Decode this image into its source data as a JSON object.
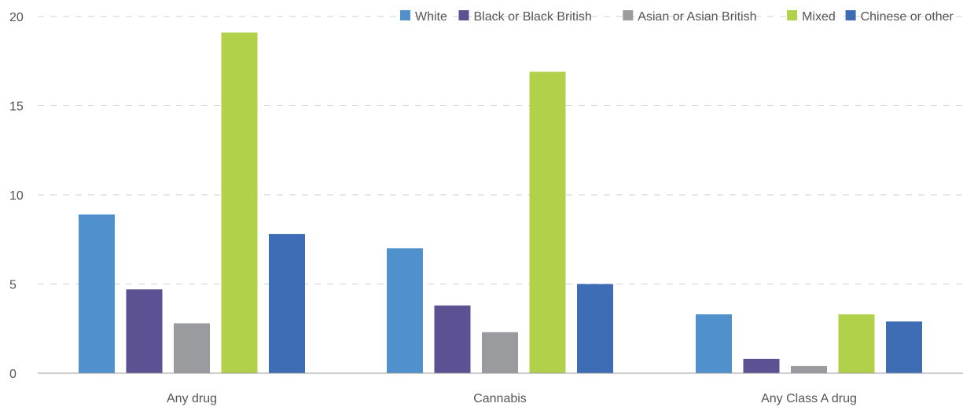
{
  "chart_data": {
    "type": "bar",
    "categories": [
      "Any drug",
      "Cannabis",
      "Any Class A drug"
    ],
    "series": [
      {
        "name": "White",
        "color": "#4f90cd",
        "values": [
          8.9,
          7.0,
          3.3
        ]
      },
      {
        "name": "Black or Black British",
        "color": "#5c5192",
        "values": [
          4.7,
          3.8,
          0.8
        ]
      },
      {
        "name": "Asian or Asian British",
        "color": "#9a9b9e",
        "values": [
          2.8,
          2.3,
          0.4
        ]
      },
      {
        "name": "Mixed",
        "color": "#b2d14a",
        "values": [
          19.1,
          16.9,
          3.3
        ]
      },
      {
        "name": "Chinese or other",
        "color": "#3f6db5",
        "values": [
          7.8,
          5.0,
          2.9
        ]
      }
    ],
    "yticks": [
      0,
      5,
      10,
      15,
      20
    ],
    "ylim": [
      0,
      20
    ],
    "grid": true,
    "legend_position": "top-right"
  }
}
